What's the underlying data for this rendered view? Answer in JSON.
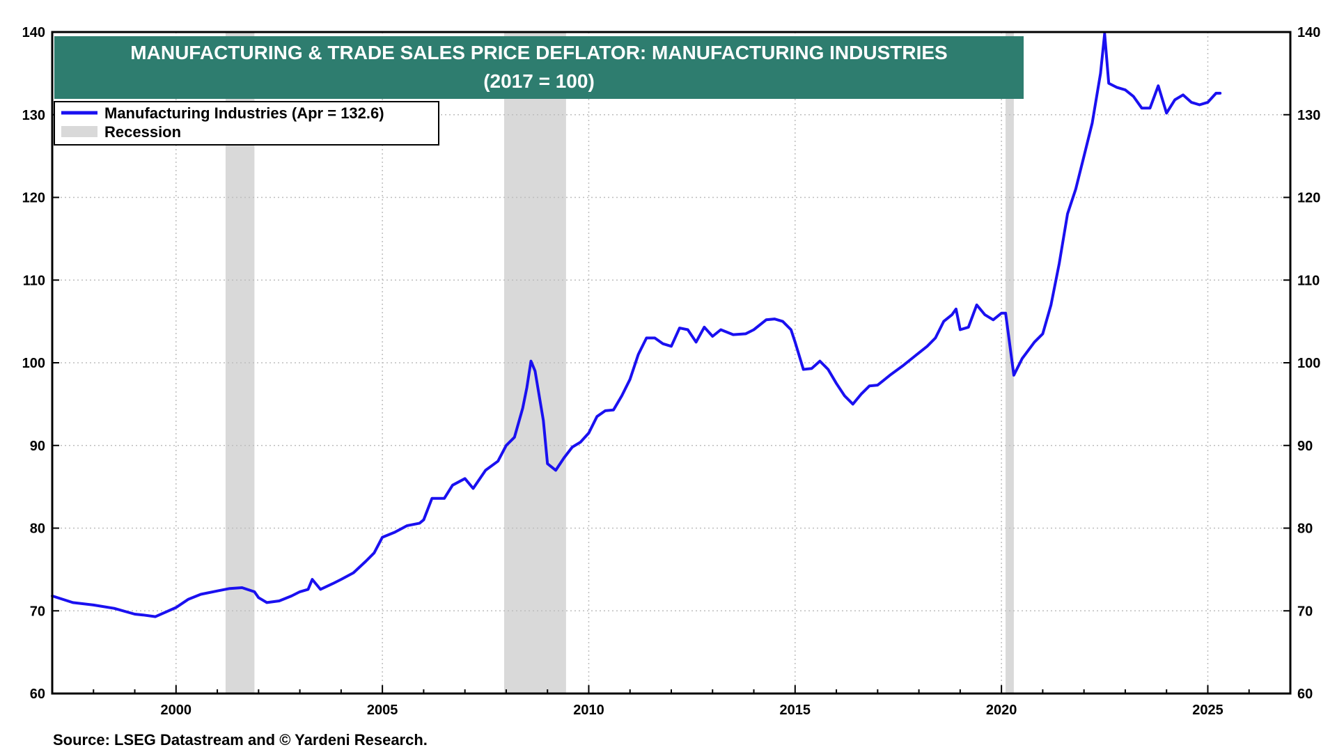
{
  "chart_data": {
    "type": "line",
    "title": "MANUFACTURING & TRADE SALES PRICE DEFLATOR: MANUFACTURING INDUSTRIES",
    "subtitle": "(2017 = 100)",
    "xlabel": "",
    "ylabel": "",
    "xlim": [
      1997.0,
      2027.0
    ],
    "ylim": [
      60,
      140
    ],
    "x_ticks": [
      2000,
      2005,
      2010,
      2015,
      2020,
      2025
    ],
    "y_ticks": [
      60,
      70,
      80,
      90,
      100,
      110,
      120,
      130,
      140
    ],
    "grid": true,
    "legend_position": "top-left",
    "source": "Source: LSEG Datastream and © Yardeni Research.",
    "colors": {
      "line": "#1a10f0",
      "recession": "#d9d9d9",
      "title_bg": "#2e7d6f"
    },
    "recessions": [
      {
        "label": "Recession",
        "start": 2001.2,
        "end": 2001.9
      },
      {
        "label": "Recession",
        "start": 2007.95,
        "end": 2009.45
      },
      {
        "label": "Recession",
        "start": 2020.1,
        "end": 2020.3
      }
    ],
    "legend": [
      {
        "label": "Manufacturing Industries (Apr = 132.6)",
        "kind": "line"
      },
      {
        "label": "Recession",
        "kind": "box"
      }
    ],
    "series": [
      {
        "name": "Manufacturing Industries (Apr = 132.6)",
        "x": [
          1997.0,
          1997.5,
          1998.0,
          1998.5,
          1999.0,
          1999.2,
          1999.5,
          2000.0,
          2000.3,
          2000.6,
          2001.0,
          2001.3,
          2001.6,
          2001.9,
          2002.0,
          2002.2,
          2002.5,
          2002.8,
          2003.0,
          2003.2,
          2003.3,
          2003.5,
          2003.8,
          2004.0,
          2004.3,
          2004.6,
          2004.8,
          2005.0,
          2005.3,
          2005.6,
          2005.9,
          2006.0,
          2006.2,
          2006.5,
          2006.7,
          2007.0,
          2007.2,
          2007.5,
          2007.8,
          2008.0,
          2008.2,
          2008.4,
          2008.5,
          2008.6,
          2008.7,
          2008.9,
          2009.0,
          2009.2,
          2009.4,
          2009.6,
          2009.8,
          2010.0,
          2010.2,
          2010.4,
          2010.6,
          2010.8,
          2011.0,
          2011.2,
          2011.4,
          2011.6,
          2011.8,
          2012.0,
          2012.2,
          2012.4,
          2012.6,
          2012.8,
          2013.0,
          2013.2,
          2013.5,
          2013.8,
          2014.0,
          2014.3,
          2014.5,
          2014.7,
          2014.9,
          2015.0,
          2015.2,
          2015.4,
          2015.6,
          2015.8,
          2016.0,
          2016.2,
          2016.4,
          2016.6,
          2016.8,
          2017.0,
          2017.3,
          2017.6,
          2017.9,
          2018.2,
          2018.4,
          2018.6,
          2018.8,
          2018.9,
          2019.0,
          2019.2,
          2019.4,
          2019.6,
          2019.8,
          2020.0,
          2020.1,
          2020.3,
          2020.5,
          2020.8,
          2021.0,
          2021.2,
          2021.4,
          2021.6,
          2021.8,
          2022.0,
          2022.2,
          2022.4,
          2022.5,
          2022.6,
          2022.8,
          2023.0,
          2023.2,
          2023.4,
          2023.6,
          2023.8,
          2024.0,
          2024.2,
          2024.4,
          2024.6,
          2024.8,
          2025.0,
          2025.2,
          2025.3
        ],
        "values": [
          71.8,
          71.0,
          70.7,
          70.3,
          69.6,
          69.5,
          69.3,
          70.4,
          71.4,
          72.0,
          72.4,
          72.7,
          72.8,
          72.3,
          71.6,
          71.0,
          71.2,
          71.8,
          72.3,
          72.6,
          73.8,
          72.6,
          73.3,
          73.8,
          74.6,
          76.0,
          77.0,
          78.9,
          79.5,
          80.3,
          80.6,
          81.0,
          83.6,
          83.6,
          85.2,
          86.0,
          84.8,
          87.0,
          88.1,
          90.0,
          91.0,
          94.5,
          97.0,
          100.2,
          99.0,
          93.0,
          87.8,
          87.0,
          88.5,
          89.8,
          90.4,
          91.5,
          93.5,
          94.2,
          94.3,
          96.0,
          98.0,
          101.0,
          103.0,
          103.0,
          102.3,
          102.0,
          104.2,
          104.0,
          102.5,
          104.3,
          103.2,
          104.0,
          103.4,
          103.5,
          104.0,
          105.2,
          105.3,
          105.0,
          104.0,
          102.5,
          99.2,
          99.3,
          100.2,
          99.2,
          97.5,
          96.0,
          95.0,
          96.2,
          97.2,
          97.3,
          98.5,
          99.6,
          100.8,
          102.0,
          103.0,
          105.0,
          105.8,
          106.5,
          104.0,
          104.3,
          107.0,
          105.8,
          105.2,
          106.0,
          106.0,
          98.5,
          100.5,
          102.5,
          103.5,
          107.0,
          112.0,
          118.0,
          121.0,
          125.0,
          129.0,
          135.0,
          139.8,
          133.8,
          133.3,
          133.0,
          132.2,
          130.8,
          130.8,
          133.5,
          130.2,
          131.8,
          132.4,
          131.5,
          131.2,
          131.5,
          132.6,
          132.6
        ]
      }
    ]
  }
}
